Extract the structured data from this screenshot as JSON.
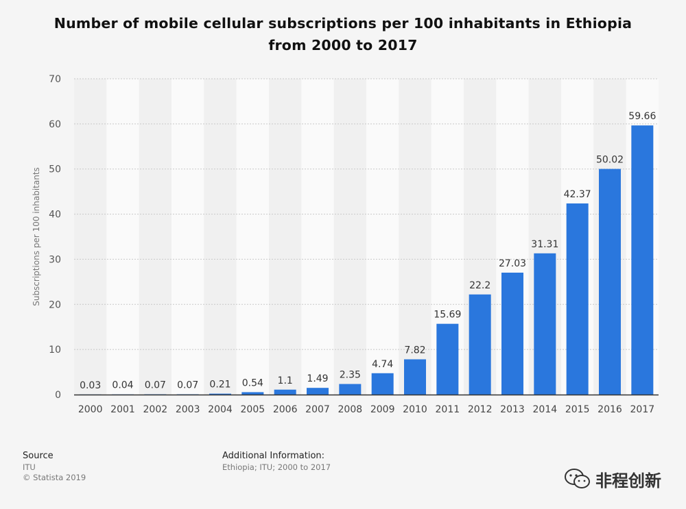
{
  "chart_data": {
    "type": "bar",
    "title": "Number of mobile cellular subscriptions per 100 inhabitants in Ethiopia from 2000 to 2017",
    "xlabel": "",
    "ylabel": "Subscriptions per 100 inhabitants",
    "categories": [
      "2000",
      "2001",
      "2002",
      "2003",
      "2004",
      "2005",
      "2006",
      "2007",
      "2008",
      "2009",
      "2010",
      "2011",
      "2012",
      "2013",
      "2014",
      "2015",
      "2016",
      "2017"
    ],
    "values": [
      0.03,
      0.04,
      0.07,
      0.07,
      0.21,
      0.54,
      1.1,
      1.49,
      2.35,
      4.74,
      7.82,
      15.69,
      22.2,
      27.03,
      31.31,
      42.37,
      50.02,
      59.66
    ],
    "value_labels": [
      "0.03",
      "0.04",
      "0.07",
      "0.07",
      "0.21",
      "0.54",
      "1.1",
      "1.49",
      "2.35",
      "4.74",
      "7.82",
      "15.69",
      "22.2",
      "27.03",
      "31.31",
      "42.37",
      "50.02",
      "59.66"
    ],
    "ylim": [
      0,
      70
    ],
    "yticks": [
      0,
      10,
      20,
      30,
      40,
      50,
      60,
      70
    ],
    "grid": true,
    "bar_color": "#2a77dd",
    "legend": "none"
  },
  "footer": {
    "source_label": "Source",
    "source_value": "ITU",
    "copyright": "© Statista 2019",
    "additional_label": "Additional Information:",
    "additional_value": "Ethiopia; ITU; 2000 to 2017"
  },
  "watermark": {
    "text": "非程创新",
    "icon": "wechat-icon"
  }
}
